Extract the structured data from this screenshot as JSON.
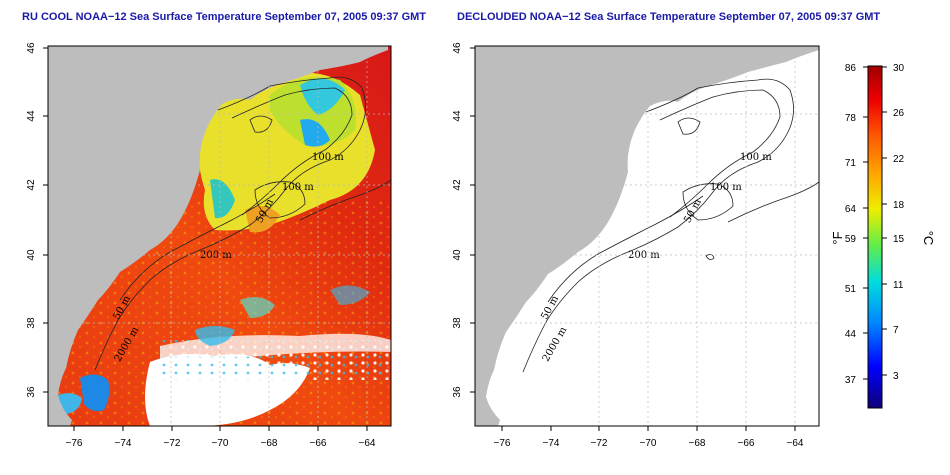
{
  "panels": [
    {
      "id": "left",
      "title": "RU COOL NOAA−12 Sea Surface Temperature September 07, 2005 09:37 GMT",
      "contour_labels": [
        "100 m",
        "100 m",
        "50 m",
        "200 m",
        "50 m",
        "2000 m"
      ]
    },
    {
      "id": "right",
      "title": "DECLOUDED NOAA−12 Sea Surface Temperature September 07, 2005 09:37 GMT",
      "contour_labels": [
        "100 m",
        "100 m",
        "50 m",
        "200 m",
        "50 m",
        "2000 m"
      ]
    }
  ],
  "axes": {
    "lon_ticks": [
      "−76",
      "−74",
      "−72",
      "−70",
      "−68",
      "−66",
      "−64"
    ],
    "lat_ticks": [
      "46",
      "44",
      "42",
      "40",
      "38",
      "36"
    ]
  },
  "colorbar": {
    "fahrenheit_ticks": [
      "86",
      "78",
      "71",
      "64",
      "59",
      "51",
      "44",
      "37"
    ],
    "celsius_ticks": [
      "30",
      "26",
      "22",
      "18",
      "15",
      "11",
      "7",
      "3"
    ],
    "fahrenheit_unit": "°F",
    "celsius_unit": "°C",
    "colors": [
      "#10007a",
      "#0000ff",
      "#0088ff",
      "#00dddd",
      "#66ee44",
      "#eeee00",
      "#ffaa00",
      "#ff5500",
      "#ee0000",
      "#a00000"
    ]
  }
}
